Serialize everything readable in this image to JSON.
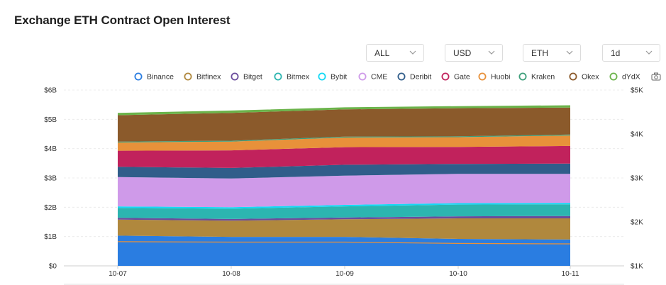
{
  "page": {
    "title": "Exchange ETH Contract Open Interest"
  },
  "selects": [
    {
      "name": "range-select",
      "value": "ALL"
    },
    {
      "name": "currency-select",
      "value": "USD"
    },
    {
      "name": "asset-select",
      "value": "ETH"
    },
    {
      "name": "interval-select",
      "value": "1d"
    }
  ],
  "icons": {
    "select_chevron": "chevron-down-icon",
    "screenshot": "camera-icon"
  },
  "chart_data": {
    "type": "area",
    "stacked": true,
    "x": [
      "10-07",
      "10-08",
      "10-09",
      "10-10",
      "10-11"
    ],
    "y_left": {
      "ticks": [
        "$0",
        "$1B",
        "$2B",
        "$3B",
        "$4B",
        "$5B",
        "$6B"
      ],
      "range": [
        0,
        6000000000
      ]
    },
    "y_right": {
      "ticks": [
        "$1K",
        "$2K",
        "$3K",
        "$4K",
        "$5K"
      ],
      "range": [
        1000,
        5000
      ]
    },
    "legend_position": "top",
    "series": [
      {
        "name": "Binance",
        "color": "#2a7de1",
        "values": [
          1.03,
          0.99,
          0.99,
          0.92,
          0.9
        ]
      },
      {
        "name": "Bitfinex",
        "color": "#b0883d",
        "values": [
          0.55,
          0.55,
          0.6,
          0.7,
          0.72
        ]
      },
      {
        "name": "Bitget",
        "color": "#6a4c9c",
        "values": [
          0.06,
          0.06,
          0.06,
          0.07,
          0.08
        ]
      },
      {
        "name": "Bitmex",
        "color": "#2cb5b0",
        "values": [
          0.34,
          0.35,
          0.38,
          0.4,
          0.4
        ]
      },
      {
        "name": "Bybit",
        "color": "#14d9f5",
        "values": [
          0.05,
          0.05,
          0.05,
          0.05,
          0.05
        ]
      },
      {
        "name": "CME",
        "color": "#cf9ae9",
        "values": [
          1.0,
          0.98,
          1.0,
          1.0,
          0.99
        ]
      },
      {
        "name": "Deribit",
        "color": "#305d8a",
        "values": [
          0.35,
          0.36,
          0.37,
          0.34,
          0.35
        ]
      },
      {
        "name": "Gate",
        "color": "#c1225c",
        "values": [
          0.55,
          0.6,
          0.6,
          0.58,
          0.6
        ]
      },
      {
        "name": "Huobi",
        "color": "#e8913a",
        "values": [
          0.28,
          0.3,
          0.33,
          0.33,
          0.36
        ]
      },
      {
        "name": "Kraken",
        "color": "#3e9f7b",
        "values": [
          0.03,
          0.03,
          0.03,
          0.03,
          0.03
        ]
      },
      {
        "name": "Okex",
        "color": "#8b5a2b",
        "values": [
          0.9,
          0.95,
          0.93,
          0.96,
          0.92
        ]
      },
      {
        "name": "dYdX",
        "color": "#6bb34a",
        "values": [
          0.08,
          0.08,
          0.07,
          0.07,
          0.08
        ]
      }
    ],
    "price_line": {
      "axis": "right",
      "color": "#e8913a",
      "values": [
        1.55,
        1.54,
        1.54,
        1.51,
        1.5
      ]
    },
    "grid": true
  }
}
